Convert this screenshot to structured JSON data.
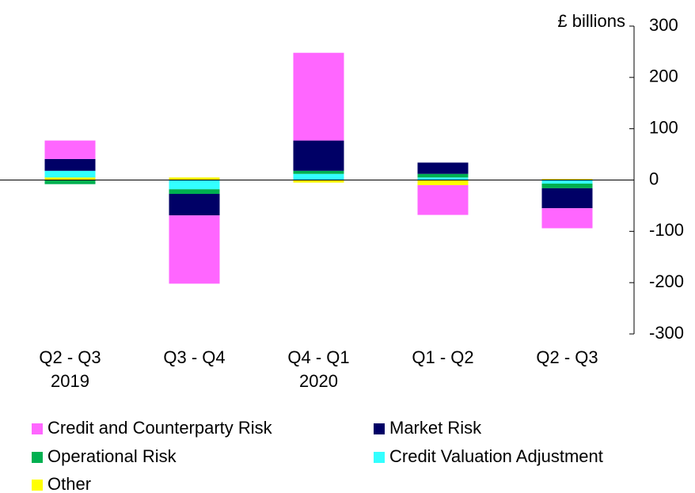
{
  "chart_data": {
    "type": "stacked_bar",
    "y_label": "£ billions",
    "categories": [
      "Q2 - Q3\n2019",
      "Q3 - Q4",
      "Q4 - Q1\n2020",
      "Q1 - Q2",
      "Q2 - Q3"
    ],
    "series": [
      {
        "name": "Credit and Counterparty Risk",
        "color": "#ff66ff",
        "values": [
          36,
          -133,
          171,
          -58,
          -39
        ]
      },
      {
        "name": "Market Risk",
        "color": "#000066",
        "values": [
          23,
          -42,
          59,
          22,
          -39
        ]
      },
      {
        "name": "Operational Risk",
        "color": "#00b050",
        "values": [
          -8,
          -9,
          6,
          7,
          -9
        ]
      },
      {
        "name": "Credit Valuation Adjustment",
        "color": "#33ffff",
        "values": [
          13,
          -18,
          12,
          5,
          -7
        ]
      },
      {
        "name": "Other",
        "color": "#ffff00",
        "values": [
          5,
          5,
          -5,
          -10,
          2
        ]
      }
    ],
    "ylim": [
      -300,
      300
    ],
    "yticks": [
      -300,
      -200,
      -100,
      0,
      100,
      200,
      300
    ]
  }
}
